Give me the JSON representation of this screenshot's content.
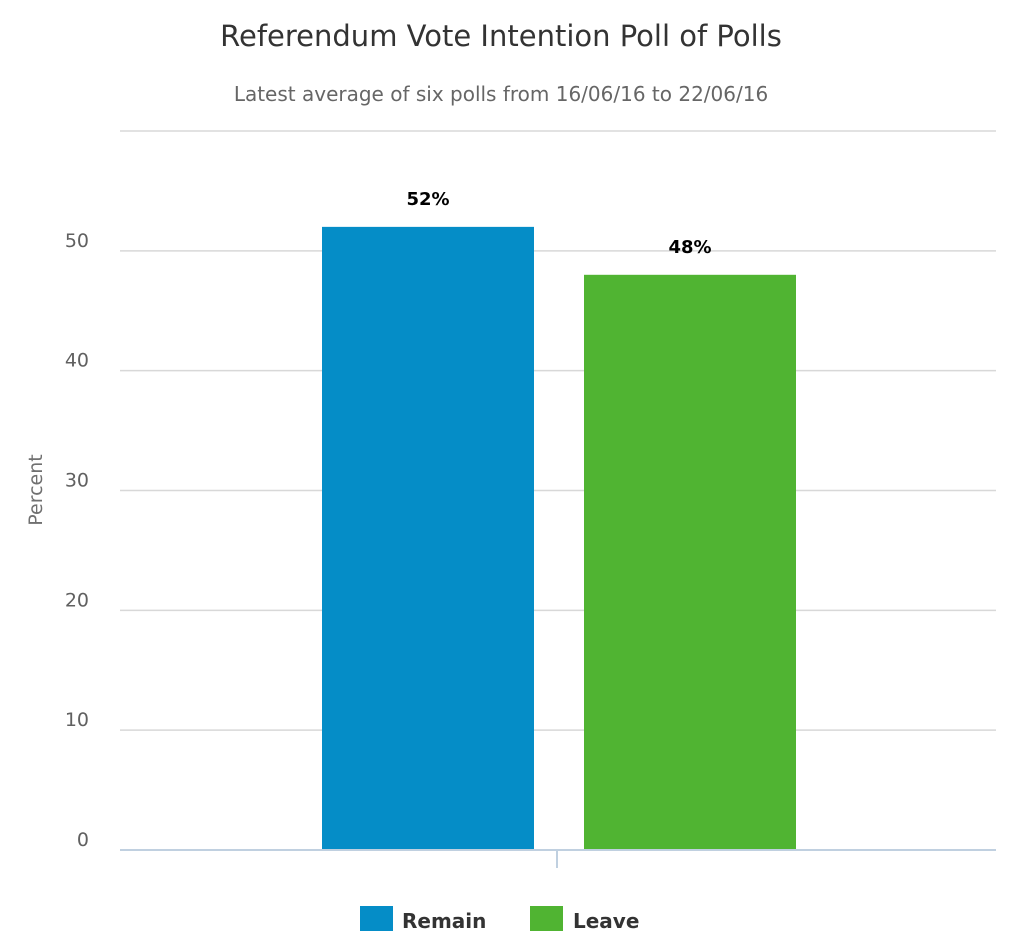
{
  "chart_data": {
    "type": "bar",
    "title": "Referendum Vote Intention Poll of Polls",
    "subtitle": "Latest average of six polls from 16/06/16 to 22/06/16",
    "ylabel": "Percent",
    "xlabel": "",
    "ylim": [
      0,
      60
    ],
    "yticks": [
      0,
      10,
      20,
      30,
      40,
      50
    ],
    "grid": true,
    "legend_position": "bottom",
    "series": [
      {
        "name": "Remain",
        "value": 52,
        "label": "52%",
        "color": "#058dc7"
      },
      {
        "name": "Leave",
        "value": 48,
        "label": "48%",
        "color": "#50b432"
      }
    ]
  }
}
